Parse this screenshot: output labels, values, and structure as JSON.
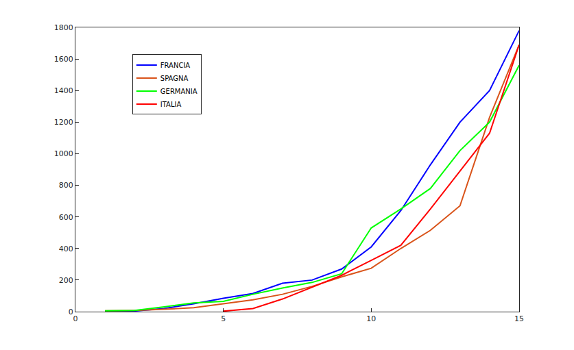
{
  "chart_data": {
    "type": "line",
    "x": [
      1,
      2,
      3,
      4,
      5,
      6,
      7,
      8,
      9,
      10,
      11,
      12,
      13,
      14,
      15
    ],
    "series": [
      {
        "name": "FRANCIA",
        "color": "#0000ff",
        "values": [
          2,
          4,
          20,
          50,
          85,
          115,
          180,
          200,
          270,
          410,
          640,
          930,
          1200,
          1400,
          1780
        ]
      },
      {
        "name": "SPAGNA",
        "color": "#d95319",
        "values": [
          5,
          8,
          15,
          25,
          50,
          75,
          110,
          160,
          220,
          275,
          400,
          515,
          670,
          1230,
          1690
        ]
      },
      {
        "name": "GERMANIA",
        "color": "#00ff00",
        "values": [
          5,
          8,
          30,
          55,
          65,
          110,
          150,
          185,
          240,
          530,
          650,
          780,
          1020,
          1200,
          1560
        ]
      },
      {
        "name": "ITALIA",
        "color": "#ff0000",
        "values": [
          null,
          null,
          null,
          null,
          3,
          20,
          80,
          155,
          230,
          325,
          420,
          650,
          890,
          1130,
          1690
        ]
      }
    ],
    "xlim": [
      0,
      15
    ],
    "xticks": [
      0,
      5,
      10,
      15
    ],
    "ylim": [
      0,
      1800
    ],
    "yticks": [
      0,
      200,
      400,
      600,
      800,
      1000,
      1200,
      1400,
      1600,
      1800
    ],
    "grid": false,
    "legend": "upper left"
  }
}
